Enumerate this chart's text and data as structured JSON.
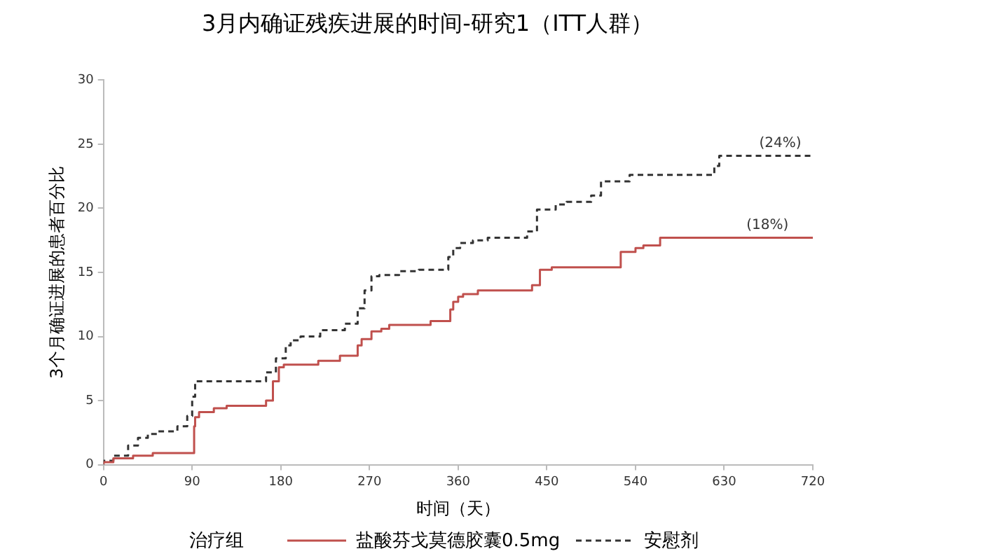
{
  "chart_data": {
    "type": "step",
    "title": "3月内确证残疾进展的时间-研究1（ITT人群）",
    "xlabel": "时间（天）",
    "ylabel": "3个月确证进展的患者百分比",
    "xlim": [
      0,
      720
    ],
    "xticks": [
      0,
      90,
      180,
      270,
      360,
      450,
      540,
      630,
      720
    ],
    "ylim": [
      0,
      30
    ],
    "yticks": [
      0,
      5,
      10,
      15,
      20,
      25,
      30
    ],
    "legend": "bottom",
    "legend_title": "治疗组",
    "marker": "none",
    "series": [
      {
        "name": "盐酸芬戈莫德胶囊0.5mg",
        "color": "#c0504d",
        "line_style": "solid",
        "x": [
          0,
          10,
          30,
          50,
          92,
          93,
          97,
          112,
          125,
          165,
          172,
          178,
          183,
          218,
          240,
          258,
          262,
          272,
          282,
          290,
          332,
          352,
          355,
          360,
          365,
          380,
          435,
          443,
          455,
          525,
          540,
          548,
          565,
          632,
          720
        ],
        "values": [
          0,
          0.2,
          0.5,
          0.7,
          0.9,
          3,
          3.7,
          4.1,
          4.4,
          4.6,
          5,
          6.5,
          7.6,
          7.8,
          8.1,
          8.5,
          9.3,
          9.8,
          10.4,
          10.6,
          10.9,
          11.2,
          12.1,
          12.7,
          13.1,
          13.3,
          13.6,
          14,
          15.2,
          15.4,
          16.6,
          16.9,
          17.1,
          17.7,
          17.7
        ]
      },
      {
        "name": "安慰剂",
        "color": "#333333",
        "line_style": "dashed",
        "x": [
          0,
          10,
          25,
          35,
          45,
          55,
          75,
          85,
          90,
          93,
          100,
          165,
          175,
          185,
          190,
          200,
          220,
          245,
          258,
          265,
          272,
          280,
          300,
          320,
          350,
          355,
          362,
          375,
          390,
          430,
          440,
          459,
          470,
          495,
          505,
          534,
          552,
          620,
          625,
          635,
          720
        ],
        "values": [
          0,
          0.3,
          0.7,
          1.5,
          2.1,
          2.4,
          2.6,
          3,
          3.8,
          5.3,
          6.5,
          6.5,
          7.2,
          8.3,
          9.3,
          9.7,
          10,
          10.5,
          11,
          12.2,
          13.6,
          14.7,
          14.8,
          15.1,
          15.2,
          16.2,
          16.9,
          17.3,
          17.5,
          17.7,
          18.2,
          19.9,
          20.3,
          20.5,
          21,
          22.1,
          22.6,
          22.6,
          23.3,
          24.1,
          24.1
        ]
      }
    ],
    "annotations": [
      {
        "text": "(18%)",
        "x": 674,
        "y": 17.7
      },
      {
        "text": "(24%)",
        "x": 687,
        "y": 24.1
      }
    ]
  }
}
